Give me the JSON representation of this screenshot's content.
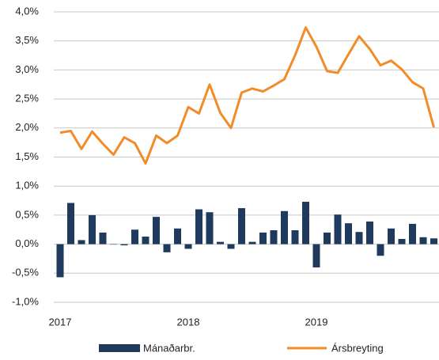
{
  "chart_data": {
    "type": "bar",
    "categories": [
      "2017",
      null,
      null,
      null,
      null,
      null,
      null,
      null,
      null,
      null,
      null,
      null,
      "2018",
      null,
      null,
      null,
      null,
      null,
      null,
      null,
      null,
      null,
      null,
      null,
      "2019",
      null,
      null,
      null,
      null,
      null,
      null,
      null,
      null,
      null,
      null,
      null
    ],
    "series": [
      {
        "name": "Mánaðarbr.",
        "type": "bar",
        "color": "#1f3a5c",
        "values": [
          -0.57,
          0.71,
          0.07,
          0.5,
          0.2,
          0.0,
          -0.02,
          0.25,
          0.13,
          0.47,
          -0.14,
          0.27,
          -0.08,
          0.6,
          0.55,
          0.04,
          -0.08,
          0.62,
          0.04,
          0.2,
          0.24,
          0.57,
          0.24,
          0.73,
          -0.4,
          0.2,
          0.51,
          0.36,
          0.21,
          0.39,
          -0.2,
          0.27,
          0.09,
          0.35,
          0.12,
          0.1
        ]
      },
      {
        "name": "Ársbreyting",
        "type": "line",
        "color": "#f28c28",
        "values": [
          1.92,
          1.95,
          1.64,
          1.94,
          1.73,
          1.54,
          1.84,
          1.74,
          1.39,
          1.87,
          1.74,
          1.87,
          2.36,
          2.25,
          2.75,
          2.26,
          2.0,
          2.61,
          2.68,
          2.63,
          2.73,
          2.84,
          3.25,
          3.73,
          3.4,
          2.98,
          2.95,
          3.27,
          3.58,
          3.36,
          3.08,
          3.16,
          3.01,
          2.79,
          2.68,
          2.01
        ]
      }
    ],
    "ylim": [
      -1.0,
      4.0
    ],
    "yticks": [
      {
        "value": -1.0,
        "label": "-1,0%"
      },
      {
        "value": -0.5,
        "label": "-0,5%"
      },
      {
        "value": 0,
        "label": "0,0%"
      },
      {
        "value": 0.5,
        "label": "0,5%"
      },
      {
        "value": 1.0,
        "label": "1,0%"
      },
      {
        "value": 1.5,
        "label": "1,5%"
      },
      {
        "value": 2.0,
        "label": "2,0%"
      },
      {
        "value": 2.5,
        "label": "2,5%"
      },
      {
        "value": 3.0,
        "label": "3,0%"
      },
      {
        "value": 3.5,
        "label": "3,5%"
      },
      {
        "value": 4.0,
        "label": "4,0%"
      }
    ],
    "grid": true,
    "legend": "bottom"
  }
}
